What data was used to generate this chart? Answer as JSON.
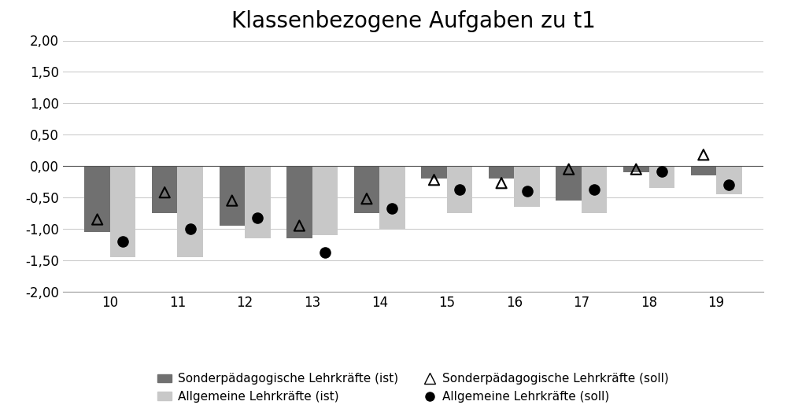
{
  "title": "Klassenbezogene Aufgaben zu t1",
  "categories": [
    10,
    11,
    12,
    13,
    14,
    15,
    16,
    17,
    18,
    19
  ],
  "sonder_ist": [
    -1.05,
    -0.75,
    -0.95,
    -1.15,
    -0.75,
    -0.2,
    -0.2,
    -0.55,
    -0.1,
    -0.15
  ],
  "allgemein_ist": [
    -1.45,
    -1.45,
    -1.15,
    -1.1,
    -1.0,
    -0.75,
    -0.65,
    -0.75,
    -0.35,
    -0.45
  ],
  "sonder_soll": [
    -0.85,
    -0.42,
    -0.55,
    -0.95,
    -0.52,
    -0.22,
    -0.27,
    -0.05,
    -0.05,
    0.18
  ],
  "allgemein_soll": [
    -1.2,
    -1.0,
    -0.82,
    -1.38,
    -0.68,
    -0.38,
    -0.4,
    -0.38,
    -0.08,
    -0.3
  ],
  "bar_width": 0.38,
  "ylim": [
    -2.0,
    2.0
  ],
  "yticks": [
    -2.0,
    -1.5,
    -1.0,
    -0.5,
    0.0,
    0.5,
    1.0,
    1.5,
    2.0
  ],
  "color_sonder_ist": "#707070",
  "color_allgemein_ist": "#c8c8c8",
  "color_sonder_soll": "#000000",
  "color_allgemein_soll": "#000000",
  "legend_sonder_ist": "Sonderpädagogische Lehrkräfte (ist)",
  "legend_allgemein_ist": "Allgemeine Lehrkräfte (ist)",
  "legend_sonder_soll": "Sonderpädagogische Lehrkräfte (soll)",
  "legend_allgemein_soll": "Allgemeine Lehrkräfte (soll)",
  "background_color": "#ffffff",
  "grid_color": "#cccccc",
  "title_fontsize": 20
}
